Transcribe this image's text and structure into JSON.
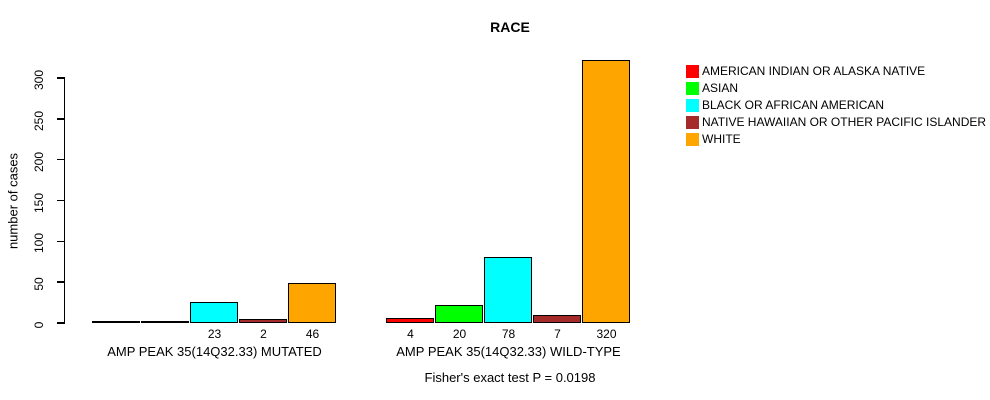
{
  "title": "RACE",
  "ylabel": "number of cases",
  "footer": "Fisher's exact test P = 0.0198",
  "legend": [
    {
      "label": "AMERICAN INDIAN OR ALASKA NATIVE",
      "color": "#FF0000"
    },
    {
      "label": "ASIAN",
      "color": "#00FF00"
    },
    {
      "label": "BLACK OR AFRICAN AMERICAN",
      "color": "#00FFFF"
    },
    {
      "label": "NATIVE HAWAIIAN OR OTHER PACIFIC ISLANDER",
      "color": "#A52A2A"
    },
    {
      "label": "WHITE",
      "color": "#FFA500"
    }
  ],
  "chart_data": {
    "type": "bar",
    "title": "RACE",
    "xlabel": "",
    "ylabel": "number of cases",
    "ylim": [
      0,
      300
    ],
    "yticks": [
      0,
      50,
      100,
      150,
      200,
      250,
      300
    ],
    "grid": false,
    "legend_position": "right-outside",
    "categories": [
      "AMP PEAK 35(14Q32.33) MUTATED",
      "AMP PEAK 35(14Q32.33) WILD-TYPE"
    ],
    "series": [
      {
        "name": "AMERICAN INDIAN OR ALASKA NATIVE",
        "key": "american-indian-or-alaska-native",
        "color": "#FF0000",
        "values": [
          0,
          4
        ],
        "labels": [
          "",
          "4"
        ]
      },
      {
        "name": "ASIAN",
        "key": "asian",
        "color": "#00FF00",
        "values": [
          0,
          20
        ],
        "labels": [
          "",
          "20"
        ]
      },
      {
        "name": "BLACK OR AFRICAN AMERICAN",
        "key": "black-or-african-american",
        "color": "#00FFFF",
        "values": [
          23,
          78
        ],
        "labels": [
          "23",
          "78"
        ]
      },
      {
        "name": "NATIVE HAWAIIAN OR OTHER PACIFIC ISLANDER",
        "key": "native-hawaiian-or-other-pacific-islander",
        "color": "#A52A2A",
        "values": [
          2,
          7
        ],
        "labels": [
          "2",
          "7"
        ]
      },
      {
        "name": "WHITE",
        "key": "white",
        "color": "#FFA500",
        "values": [
          46,
          320
        ],
        "labels": [
          "46",
          "320"
        ]
      }
    ],
    "annotation": "Fisher's exact test P = 0.0198",
    "group_keys": [
      "mutated",
      "wild-type"
    ]
  }
}
